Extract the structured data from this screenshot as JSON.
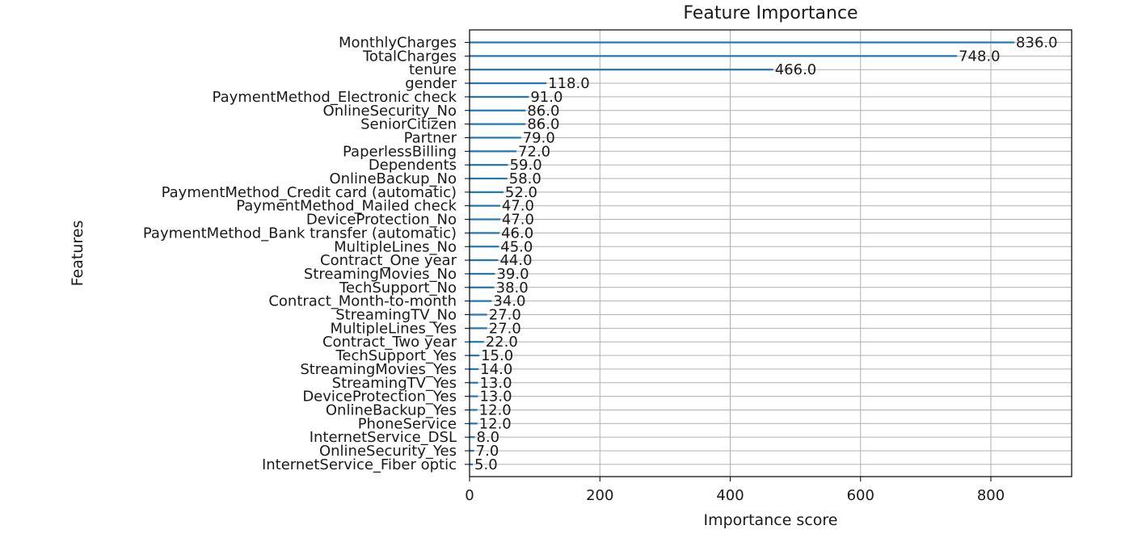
{
  "chart_data": {
    "type": "bar",
    "orientation": "horizontal",
    "title": "Feature Importance",
    "xlabel": "Importance score",
    "ylabel": "Features",
    "xlim": [
      0,
      924
    ],
    "xticks": [
      0,
      200,
      400,
      600,
      800
    ],
    "grid": true,
    "bar_color": "#1f77b4",
    "categories": [
      "MonthlyCharges",
      "TotalCharges",
      "tenure",
      "gender",
      "PaymentMethod_Electronic check",
      "OnlineSecurity_No",
      "SeniorCitizen",
      "Partner",
      "PaperlessBilling",
      "Dependents",
      "OnlineBackup_No",
      "PaymentMethod_Credit card (automatic)",
      "PaymentMethod_Mailed check",
      "DeviceProtection_No",
      "PaymentMethod_Bank transfer (automatic)",
      "MultipleLines_No",
      "Contract_One year",
      "StreamingMovies_No",
      "TechSupport_No",
      "Contract_Month-to-month",
      "StreamingTV_No",
      "MultipleLines_Yes",
      "Contract_Two year",
      "TechSupport_Yes",
      "StreamingMovies_Yes",
      "StreamingTV_Yes",
      "DeviceProtection_Yes",
      "OnlineBackup_Yes",
      "PhoneService",
      "InternetService_DSL",
      "OnlineSecurity_Yes",
      "InternetService_Fiber optic"
    ],
    "values": [
      836.0,
      748.0,
      466.0,
      118.0,
      91.0,
      86.0,
      86.0,
      79.0,
      72.0,
      59.0,
      58.0,
      52.0,
      47.0,
      47.0,
      46.0,
      45.0,
      44.0,
      39.0,
      38.0,
      34.0,
      27.0,
      27.0,
      22.0,
      15.0,
      14.0,
      13.0,
      13.0,
      12.0,
      12.0,
      8.0,
      7.0,
      5.0
    ],
    "value_labels": [
      "836.0",
      "748.0",
      "466.0",
      "118.0",
      "91.0",
      "86.0",
      "86.0",
      "79.0",
      "72.0",
      "59.0",
      "58.0",
      "52.0",
      "47.0",
      "47.0",
      "46.0",
      "45.0",
      "44.0",
      "39.0",
      "38.0",
      "34.0",
      "27.0",
      "27.0",
      "22.0",
      "15.0",
      "14.0",
      "13.0",
      "13.0",
      "12.0",
      "12.0",
      "8.0",
      "7.0",
      "5.0"
    ]
  }
}
